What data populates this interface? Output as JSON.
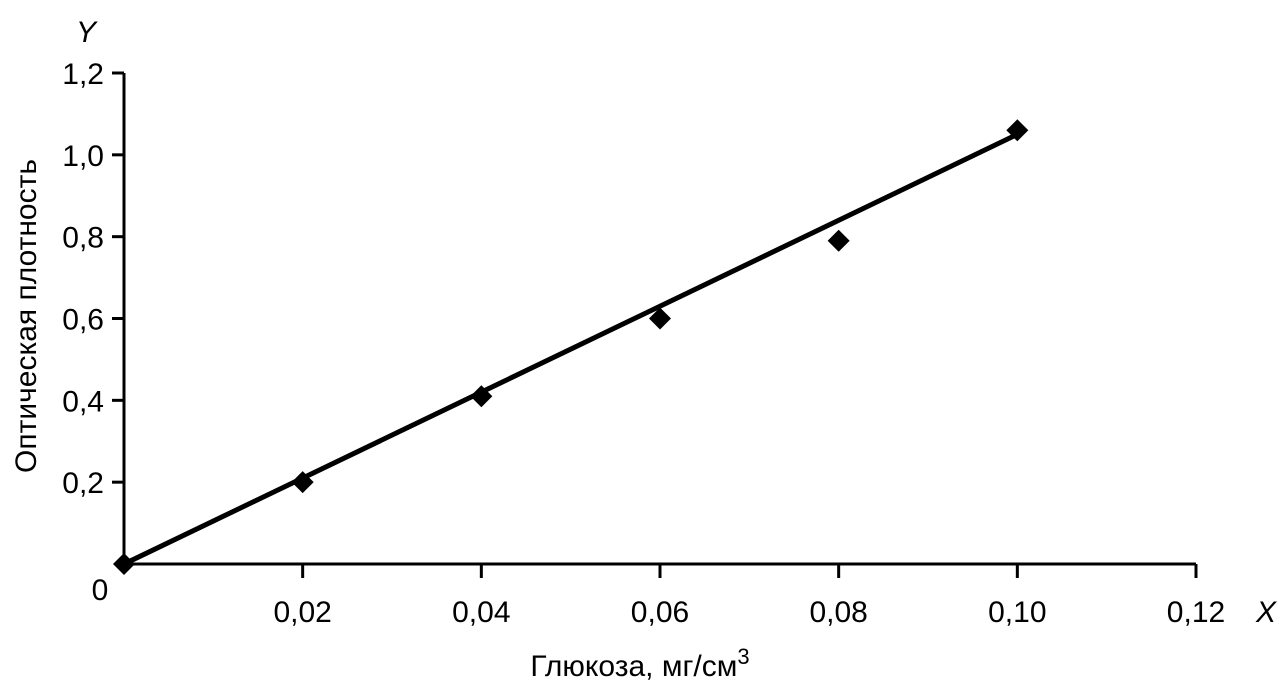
{
  "chart_data": {
    "type": "scatter",
    "xlabel": "Глюкоза, мг/см",
    "xlabel_sup": "3",
    "ylabel": "Оптическая плотность",
    "x_axis_letter": "X",
    "y_axis_letter": "Y",
    "origin_label": "0",
    "xlim": [
      0,
      0.12
    ],
    "ylim": [
      0,
      1.2
    ],
    "x_ticks": [
      0.02,
      0.04,
      0.06,
      0.08,
      0.1,
      0.12
    ],
    "x_tick_labels": [
      "0,02",
      "0,04",
      "0,06",
      "0,08",
      "0,10",
      "0,12"
    ],
    "y_ticks": [
      0.2,
      0.4,
      0.6,
      0.8,
      1.0,
      1.2
    ],
    "y_tick_labels": [
      "0,2",
      "0,4",
      "0,6",
      "0,8",
      "1,0",
      "1,2"
    ],
    "grid": false,
    "series": [
      {
        "marker": "diamond",
        "color": "#000000",
        "x": [
          0,
          0.02,
          0.04,
          0.06,
          0.08,
          0.1
        ],
        "y": [
          0,
          0.2,
          0.41,
          0.6,
          0.79,
          1.06
        ]
      }
    ],
    "trendline": {
      "type": "linear",
      "color": "#000000",
      "x": [
        0,
        0.1
      ],
      "y": [
        0,
        1.05
      ]
    }
  }
}
